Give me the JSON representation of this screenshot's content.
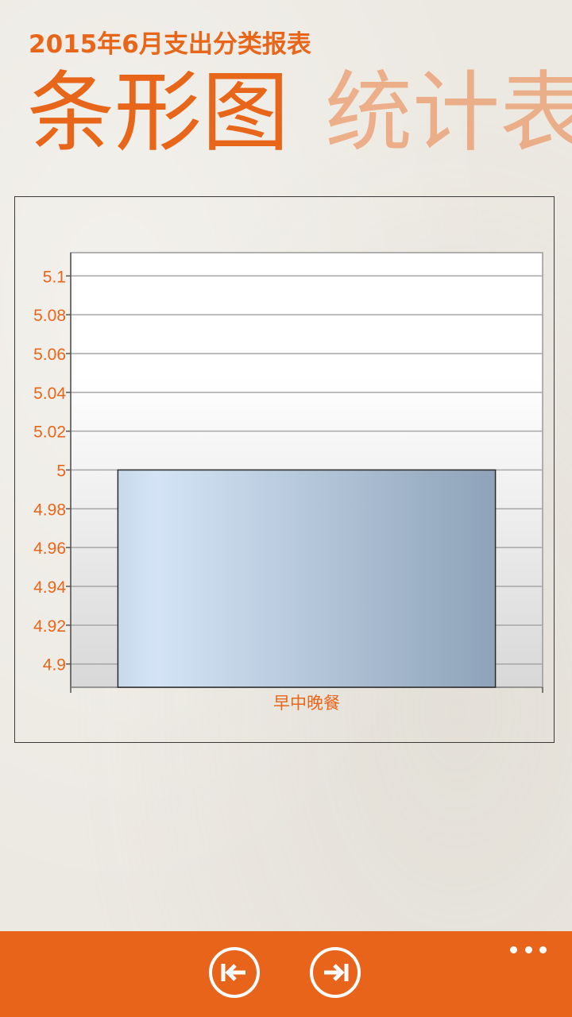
{
  "header": {
    "subtitle": "2015年6月支出分类报表",
    "pivot_items": [
      {
        "label": "条形图",
        "active": true
      },
      {
        "label": "统计表",
        "active": false
      }
    ]
  },
  "colors": {
    "accent": "#e8661a",
    "accent_inactive": "rgba(232,102,26,0.45)",
    "app_bar": "#e8641a",
    "bar_gradient_start": "#d4e4f6",
    "bar_gradient_end": "#8ea3b9"
  },
  "chart_data": {
    "type": "bar",
    "categories": [
      "早中晚餐"
    ],
    "values": [
      5
    ],
    "ylim": [
      4.888,
      5.112
    ],
    "yticks": [
      4.9,
      4.92,
      4.94,
      4.96,
      4.98,
      5,
      5.02,
      5.04,
      5.06,
      5.08,
      5.1
    ],
    "ytick_labels": [
      "4.9",
      "4.92",
      "4.94",
      "4.96",
      "4.98",
      "5",
      "5.02",
      "5.04",
      "5.06",
      "5.08",
      "5.1"
    ],
    "grid": true,
    "legend": "none"
  },
  "app_bar": {
    "buttons": [
      {
        "name": "previous-page-button",
        "icon": "arrow-left-to-bar-icon"
      },
      {
        "name": "next-page-button",
        "icon": "arrow-right-to-bar-icon"
      }
    ],
    "more_icon": "ellipsis-icon"
  }
}
